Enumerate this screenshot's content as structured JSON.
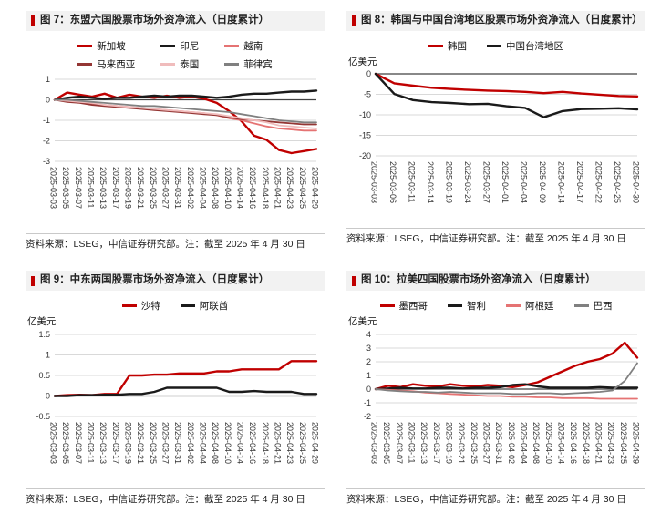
{
  "theme": {
    "accent": "#c00000",
    "grid_color": "#d9d9d9",
    "axis_color": "#404040",
    "tick_text_color": "#333333"
  },
  "chart_data": [
    {
      "id": "figure-7",
      "type": "line",
      "title": "图 7：东盟六国股票市场外资净流入（日度累计）",
      "source_note": "资料来源：LSEG，中信证券研究部。注：截至 2025 年 4 月 30 日",
      "grid": true,
      "legend_position": "top",
      "ylim": [
        -3,
        1
      ],
      "yticks": [
        1,
        0,
        -1,
        -2,
        -3
      ],
      "x": [
        "2025-03-03",
        "2025-03-05",
        "2025-03-07",
        "2025-03-11",
        "2025-03-13",
        "2025-03-17",
        "2025-03-19",
        "2025-03-21",
        "2025-03-25",
        "2025-03-27",
        "2025-03-31",
        "2025-04-02",
        "2025-04-04",
        "2025-04-08",
        "2025-04-10",
        "2025-04-14",
        "2025-04-16",
        "2025-04-18",
        "2025-04-21",
        "2025-04-23",
        "2025-04-25",
        "2025-04-29"
      ],
      "series": [
        {
          "name": "新加坡",
          "color": "#c00000",
          "width": 2.4,
          "values": [
            0,
            0.35,
            0.25,
            0.15,
            0.3,
            0.1,
            0.25,
            0.15,
            0.1,
            0.2,
            0.1,
            0.15,
            0.05,
            -0.15,
            -0.55,
            -1.05,
            -1.75,
            -1.95,
            -2.45,
            -2.6,
            -2.5,
            -2.4
          ]
        },
        {
          "name": "印尼",
          "color": "#1a1a1a",
          "width": 2.4,
          "values": [
            0,
            0.1,
            0.15,
            0.1,
            0.05,
            0.1,
            0.1,
            0.15,
            0.2,
            0.15,
            0.2,
            0.2,
            0.15,
            0.1,
            0.15,
            0.25,
            0.3,
            0.3,
            0.35,
            0.4,
            0.4,
            0.45
          ]
        },
        {
          "name": "越南",
          "color": "#e57373",
          "width": 1.8,
          "values": [
            0,
            -0.05,
            -0.1,
            -0.2,
            -0.25,
            -0.3,
            -0.35,
            -0.4,
            -0.45,
            -0.5,
            -0.55,
            -0.6,
            -0.65,
            -0.75,
            -0.9,
            -1.0,
            -1.15,
            -1.3,
            -1.4,
            -1.45,
            -1.5,
            -1.5
          ]
        },
        {
          "name": "马来西亚",
          "color": "#943634",
          "width": 1.8,
          "values": [
            0,
            -0.1,
            -0.15,
            -0.25,
            -0.3,
            -0.35,
            -0.4,
            -0.45,
            -0.5,
            -0.55,
            -0.6,
            -0.65,
            -0.7,
            -0.75,
            -0.85,
            -0.95,
            -1.0,
            -1.05,
            -1.1,
            -1.15,
            -1.2,
            -1.2
          ]
        },
        {
          "name": "泰国",
          "color": "#f0bcbc",
          "width": 1.8,
          "values": [
            0,
            -0.05,
            -0.1,
            -0.15,
            -0.25,
            -0.3,
            -0.35,
            -0.4,
            -0.45,
            -0.5,
            -0.55,
            -0.6,
            -0.65,
            -0.7,
            -0.8,
            -0.9,
            -1.0,
            -1.1,
            -1.25,
            -1.3,
            -1.35,
            -1.4
          ]
        },
        {
          "name": "菲律宾",
          "color": "#808080",
          "width": 1.8,
          "values": [
            0,
            0.0,
            -0.05,
            -0.1,
            -0.15,
            -0.2,
            -0.25,
            -0.3,
            -0.3,
            -0.35,
            -0.4,
            -0.45,
            -0.5,
            -0.55,
            -0.6,
            -0.7,
            -0.8,
            -0.9,
            -1.0,
            -1.05,
            -1.1,
            -1.1
          ]
        }
      ]
    },
    {
      "id": "figure-8",
      "type": "line",
      "title": "图 8：韩国与中国台湾地区股票市场外资净流入（日度累计）",
      "unit_label": "亿美元",
      "source_note": "资料来源：LSEG，中信证券研究部。注：截至 2025 年 4 月 30 日",
      "grid": true,
      "legend_position": "top",
      "ylim": [
        -20,
        0
      ],
      "yticks": [
        0,
        -5,
        -10,
        -15,
        -20
      ],
      "x": [
        "2025-03-03",
        "2025-03-06",
        "2025-03-11",
        "2025-03-14",
        "2025-03-19",
        "2025-03-24",
        "2025-03-27",
        "2025-04-01",
        "2025-04-04",
        "2025-04-09",
        "2025-04-14",
        "2025-04-17",
        "2025-04-22",
        "2025-04-25",
        "2025-04-30"
      ],
      "series": [
        {
          "name": "韩国",
          "color": "#c00000",
          "width": 2.4,
          "values": [
            0,
            -2.3,
            -2.9,
            -3.4,
            -3.7,
            -3.9,
            -4.1,
            -4.2,
            -4.4,
            -4.7,
            -4.4,
            -4.8,
            -5.1,
            -5.4,
            -5.5
          ]
        },
        {
          "name": "中国台湾地区",
          "color": "#1a1a1a",
          "width": 2.4,
          "values": [
            0,
            -4.9,
            -6.4,
            -6.9,
            -7.1,
            -7.4,
            -7.3,
            -7.9,
            -8.3,
            -10.6,
            -9.1,
            -8.6,
            -8.5,
            -8.4,
            -8.7
          ]
        }
      ]
    },
    {
      "id": "figure-9",
      "type": "line",
      "title": "图 9：中东两国股票市场外资净流入（日度累计）",
      "unit_label": "亿美元",
      "source_note": "资料来源：LSEG，中信证券研究部。注：截至 2025 年 4 月 30 日",
      "grid": true,
      "legend_position": "top",
      "ylim": [
        -0.5,
        1.5
      ],
      "yticks": [
        1.5,
        1,
        0.5,
        0,
        -0.5
      ],
      "x": [
        "2025-03-03",
        "2025-03-05",
        "2025-03-07",
        "2025-03-11",
        "2025-03-13",
        "2025-03-17",
        "2025-03-19",
        "2025-03-21",
        "2025-03-25",
        "2025-03-27",
        "2025-03-31",
        "2025-04-02",
        "2025-04-04",
        "2025-04-08",
        "2025-04-10",
        "2025-04-14",
        "2025-04-16",
        "2025-04-18",
        "2025-04-21",
        "2025-04-23",
        "2025-04-25",
        "2025-04-29"
      ],
      "series": [
        {
          "name": "沙特",
          "color": "#c00000",
          "width": 2.4,
          "values": [
            0,
            0.02,
            0.03,
            0.02,
            0.05,
            0.05,
            0.5,
            0.5,
            0.52,
            0.52,
            0.55,
            0.55,
            0.55,
            0.6,
            0.6,
            0.65,
            0.65,
            0.65,
            0.65,
            0.85,
            0.85,
            0.85
          ]
        },
        {
          "name": "阿联酋",
          "color": "#1a1a1a",
          "width": 2.4,
          "values": [
            0,
            0.0,
            0.02,
            0.02,
            0.03,
            0.03,
            0.05,
            0.05,
            0.1,
            0.2,
            0.2,
            0.2,
            0.2,
            0.2,
            0.1,
            0.1,
            0.12,
            0.1,
            0.1,
            0.1,
            0.05,
            0.05
          ]
        }
      ]
    },
    {
      "id": "figure-10",
      "type": "line",
      "title": "图 10：拉美四国股票市场外资净流入（日度累计）",
      "unit_label": "亿美元",
      "source_note": "资料来源：LSEG，中信证券研究部。注：截至 2025 年 4 月 30 日",
      "grid": true,
      "legend_position": "top",
      "ylim": [
        -2,
        4
      ],
      "yticks": [
        4,
        3,
        2,
        1,
        0,
        -1,
        -2
      ],
      "x": [
        "2025-03-03",
        "2025-03-05",
        "2025-03-07",
        "2025-03-11",
        "2025-03-13",
        "2025-03-17",
        "2025-03-19",
        "2025-03-21",
        "2025-03-25",
        "2025-03-27",
        "2025-03-31",
        "2025-04-02",
        "2025-04-04",
        "2025-04-08",
        "2025-04-10",
        "2025-04-14",
        "2025-04-16",
        "2025-04-18",
        "2025-04-21",
        "2025-04-23",
        "2025-04-25",
        "2025-04-29"
      ],
      "series": [
        {
          "name": "墨西哥",
          "color": "#c00000",
          "width": 2.4,
          "values": [
            0,
            0.25,
            0.15,
            0.35,
            0.25,
            0.2,
            0.35,
            0.25,
            0.2,
            0.3,
            0.25,
            0.15,
            0.3,
            0.5,
            0.9,
            1.3,
            1.7,
            2.0,
            2.2,
            2.6,
            3.4,
            2.3
          ]
        },
        {
          "name": "智利",
          "color": "#1a1a1a",
          "width": 2.4,
          "values": [
            0,
            0.05,
            0.1,
            0.05,
            0.05,
            0.1,
            0.1,
            0.05,
            0.1,
            0.1,
            0.15,
            0.3,
            0.35,
            0.2,
            0.1,
            0.1,
            0.1,
            0.1,
            0.15,
            0.1,
            0.1,
            0.1
          ]
        },
        {
          "name": "阿根廷",
          "color": "#e57373",
          "width": 1.8,
          "values": [
            0,
            -0.05,
            -0.1,
            -0.15,
            -0.25,
            -0.3,
            -0.35,
            -0.4,
            -0.45,
            -0.5,
            -0.5,
            -0.55,
            -0.55,
            -0.6,
            -0.6,
            -0.65,
            -0.65,
            -0.65,
            -0.7,
            -0.7,
            -0.7,
            -0.7
          ]
        },
        {
          "name": "巴西",
          "color": "#808080",
          "width": 1.8,
          "values": [
            0,
            -0.1,
            -0.15,
            -0.2,
            -0.2,
            -0.25,
            -0.2,
            -0.25,
            -0.3,
            -0.3,
            -0.3,
            -0.35,
            -0.35,
            -0.3,
            -0.3,
            -0.35,
            -0.3,
            -0.25,
            -0.2,
            -0.1,
            0.6,
            1.9
          ]
        }
      ]
    }
  ]
}
